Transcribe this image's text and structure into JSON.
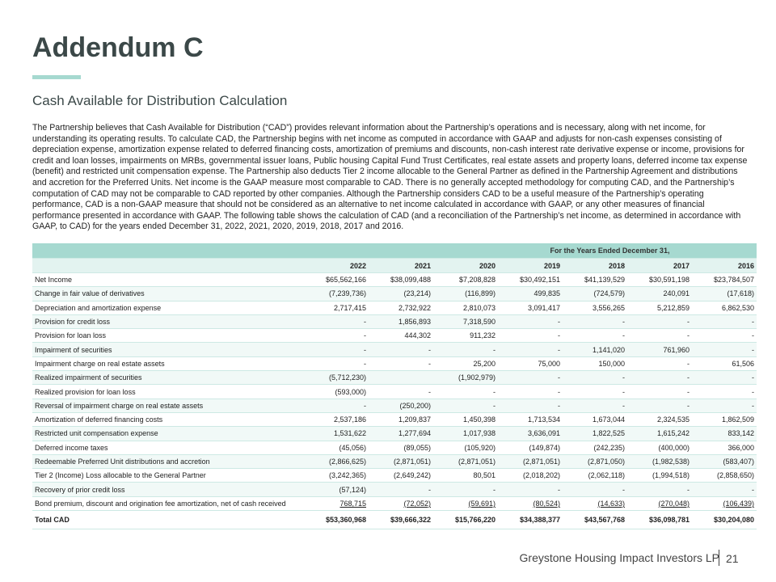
{
  "title": "Addendum C",
  "subtitle": "Cash Available for Distribution Calculation",
  "paragraph": "The Partnership believes that Cash Available for Distribution (“CAD”) provides relevant information about the Partnership’s operations and is necessary, along with net income, for understanding its operating results. To calculate CAD, the Partnership begins with net income as computed in accordance with GAAP and adjusts for non-cash expenses consisting of depreciation expense, amortization expense related to deferred financing costs, amortization of premiums and discounts, non-cash interest rate derivative expense or income, provisions for credit and loan losses, impairments on MRBs, governmental issuer loans, Public housing Capital Fund Trust Certificates, real estate assets and property loans, deferred income tax expense (benefit) and restricted unit compensation expense. The Partnership also deducts Tier 2 income allocable to the General Partner as defined in the Partnership Agreement and distributions and accretion for the Preferred Units. Net income is the GAAP measure most comparable to CAD. There is no generally accepted methodology for computing CAD, and the Partnership’s computation of CAD may not be comparable to CAD reported by other companies. Although the Partnership considers CAD to be a useful measure of the Partnership’s operating performance, CAD is a non-GAAP measure that should not be considered as an alternative to net income calculated in accordance with GAAP, or any other measures of financial performance presented in accordance with GAAP.  The following table shows the calculation of CAD (and a reconciliation of the Partnership’s net income, as determined in accordance with GAAP, to CAD) for the years ended December 31, 2022, 2021, 2020, 2019, 2018, 2017 and 2016.",
  "table": {
    "group_header": "For the Years Ended December 31,",
    "years": [
      "2022",
      "2021",
      "2020",
      "2019",
      "2018",
      "2017",
      "2016"
    ],
    "rows": [
      {
        "label": "Net Income",
        "values": [
          "$65,562,166",
          "$38,099,488",
          "$7,208,828",
          "$30,492,151",
          "$41,139,529",
          "$30,591,198",
          "$23,784,507"
        ]
      },
      {
        "label": "Change in fair value of derivatives",
        "values": [
          "(7,239,736)",
          "(23,214)",
          "(116,899)",
          "499,835",
          "(724,579)",
          "240,091",
          "(17,618)"
        ]
      },
      {
        "label": "Depreciation and amortization expense",
        "values": [
          "2,717,415",
          "2,732,922",
          "2,810,073",
          "3,091,417",
          "3,556,265",
          "5,212,859",
          "6,862,530"
        ]
      },
      {
        "label": "Provision for credit loss",
        "values": [
          "-",
          "1,856,893",
          "7,318,590",
          "-",
          "-",
          "-",
          "-"
        ]
      },
      {
        "label": "Provision for loan loss",
        "values": [
          "-",
          "444,302",
          "911,232",
          "-",
          "-",
          "-",
          "-"
        ]
      },
      {
        "label": "Impairment of securities",
        "values": [
          "-",
          "-",
          "-",
          "-",
          "1,141,020",
          "761,960",
          "-"
        ]
      },
      {
        "label": "Impairment charge on real estate assets",
        "values": [
          "-",
          "-",
          "25,200",
          "75,000",
          "150,000",
          "-",
          "61,506"
        ]
      },
      {
        "label": "Realized impairment of securities",
        "values": [
          "(5,712,230)",
          "",
          "(1,902,979)",
          "-",
          "-",
          "-",
          "-"
        ]
      },
      {
        "label": "Realized provision for loan loss",
        "values": [
          "(593,000)",
          "-",
          "-",
          "-",
          "-",
          "-",
          "-"
        ]
      },
      {
        "label": "Reversal of impairment charge on real estate assets",
        "values": [
          "-",
          "(250,200)",
          "-",
          "-",
          "-",
          "-",
          "-"
        ]
      },
      {
        "label": "Amortization of deferred financing costs",
        "values": [
          "2,537,186",
          "1,209,837",
          "1,450,398",
          "1,713,534",
          "1,673,044",
          "2,324,535",
          "1,862,509"
        ]
      },
      {
        "label": "Restricted unit compensation expense",
        "values": [
          "1,531,622",
          "1,277,694",
          "1,017,938",
          "3,636,091",
          "1,822,525",
          "1,615,242",
          "833,142"
        ]
      },
      {
        "label": "Deferred income taxes",
        "values": [
          "(45,056)",
          "(89,055)",
          "(105,920)",
          "(149,874)",
          "(242,235)",
          "(400,000)",
          "366,000"
        ]
      },
      {
        "label": "Redeemable Preferred Unit distributions and accretion",
        "values": [
          "(2,866,625)",
          "(2,871,051)",
          "(2,871,051)",
          "(2,871,051)",
          "(2,871,050)",
          "(1,982,538)",
          "(583,407)"
        ]
      },
      {
        "label": "Tier 2 (Income) Loss allocable to the General Partner",
        "values": [
          "(3,242,365)",
          "(2,649,242)",
          "80,501",
          "(2,018,202)",
          "(2,062,118)",
          "(1,994,518)",
          "(2,858,650)"
        ]
      },
      {
        "label": "Recovery of prior credit loss",
        "values": [
          "(57,124)",
          "-",
          "-",
          "-",
          "-",
          "-",
          "-"
        ]
      },
      {
        "label": "Bond premium, discount and origination fee amortization, net of cash received",
        "values": [
          "768,715",
          "(72,052)",
          "(59,691)",
          "(80,524)",
          "(14,633)",
          "(270,048)",
          "(106,439)"
        ]
      }
    ],
    "total": {
      "label": "Total CAD",
      "values": [
        "$53,360,968",
        "$39,666,322",
        "$15,766,220",
        "$34,388,377",
        "$43,567,768",
        "$36,098,781",
        "$30,204,080"
      ]
    }
  },
  "footer": {
    "company": "Greystone Housing Impact Investors LP",
    "page": "21"
  },
  "colors": {
    "accent": "#a6d9d0",
    "title": "#3b4848"
  }
}
